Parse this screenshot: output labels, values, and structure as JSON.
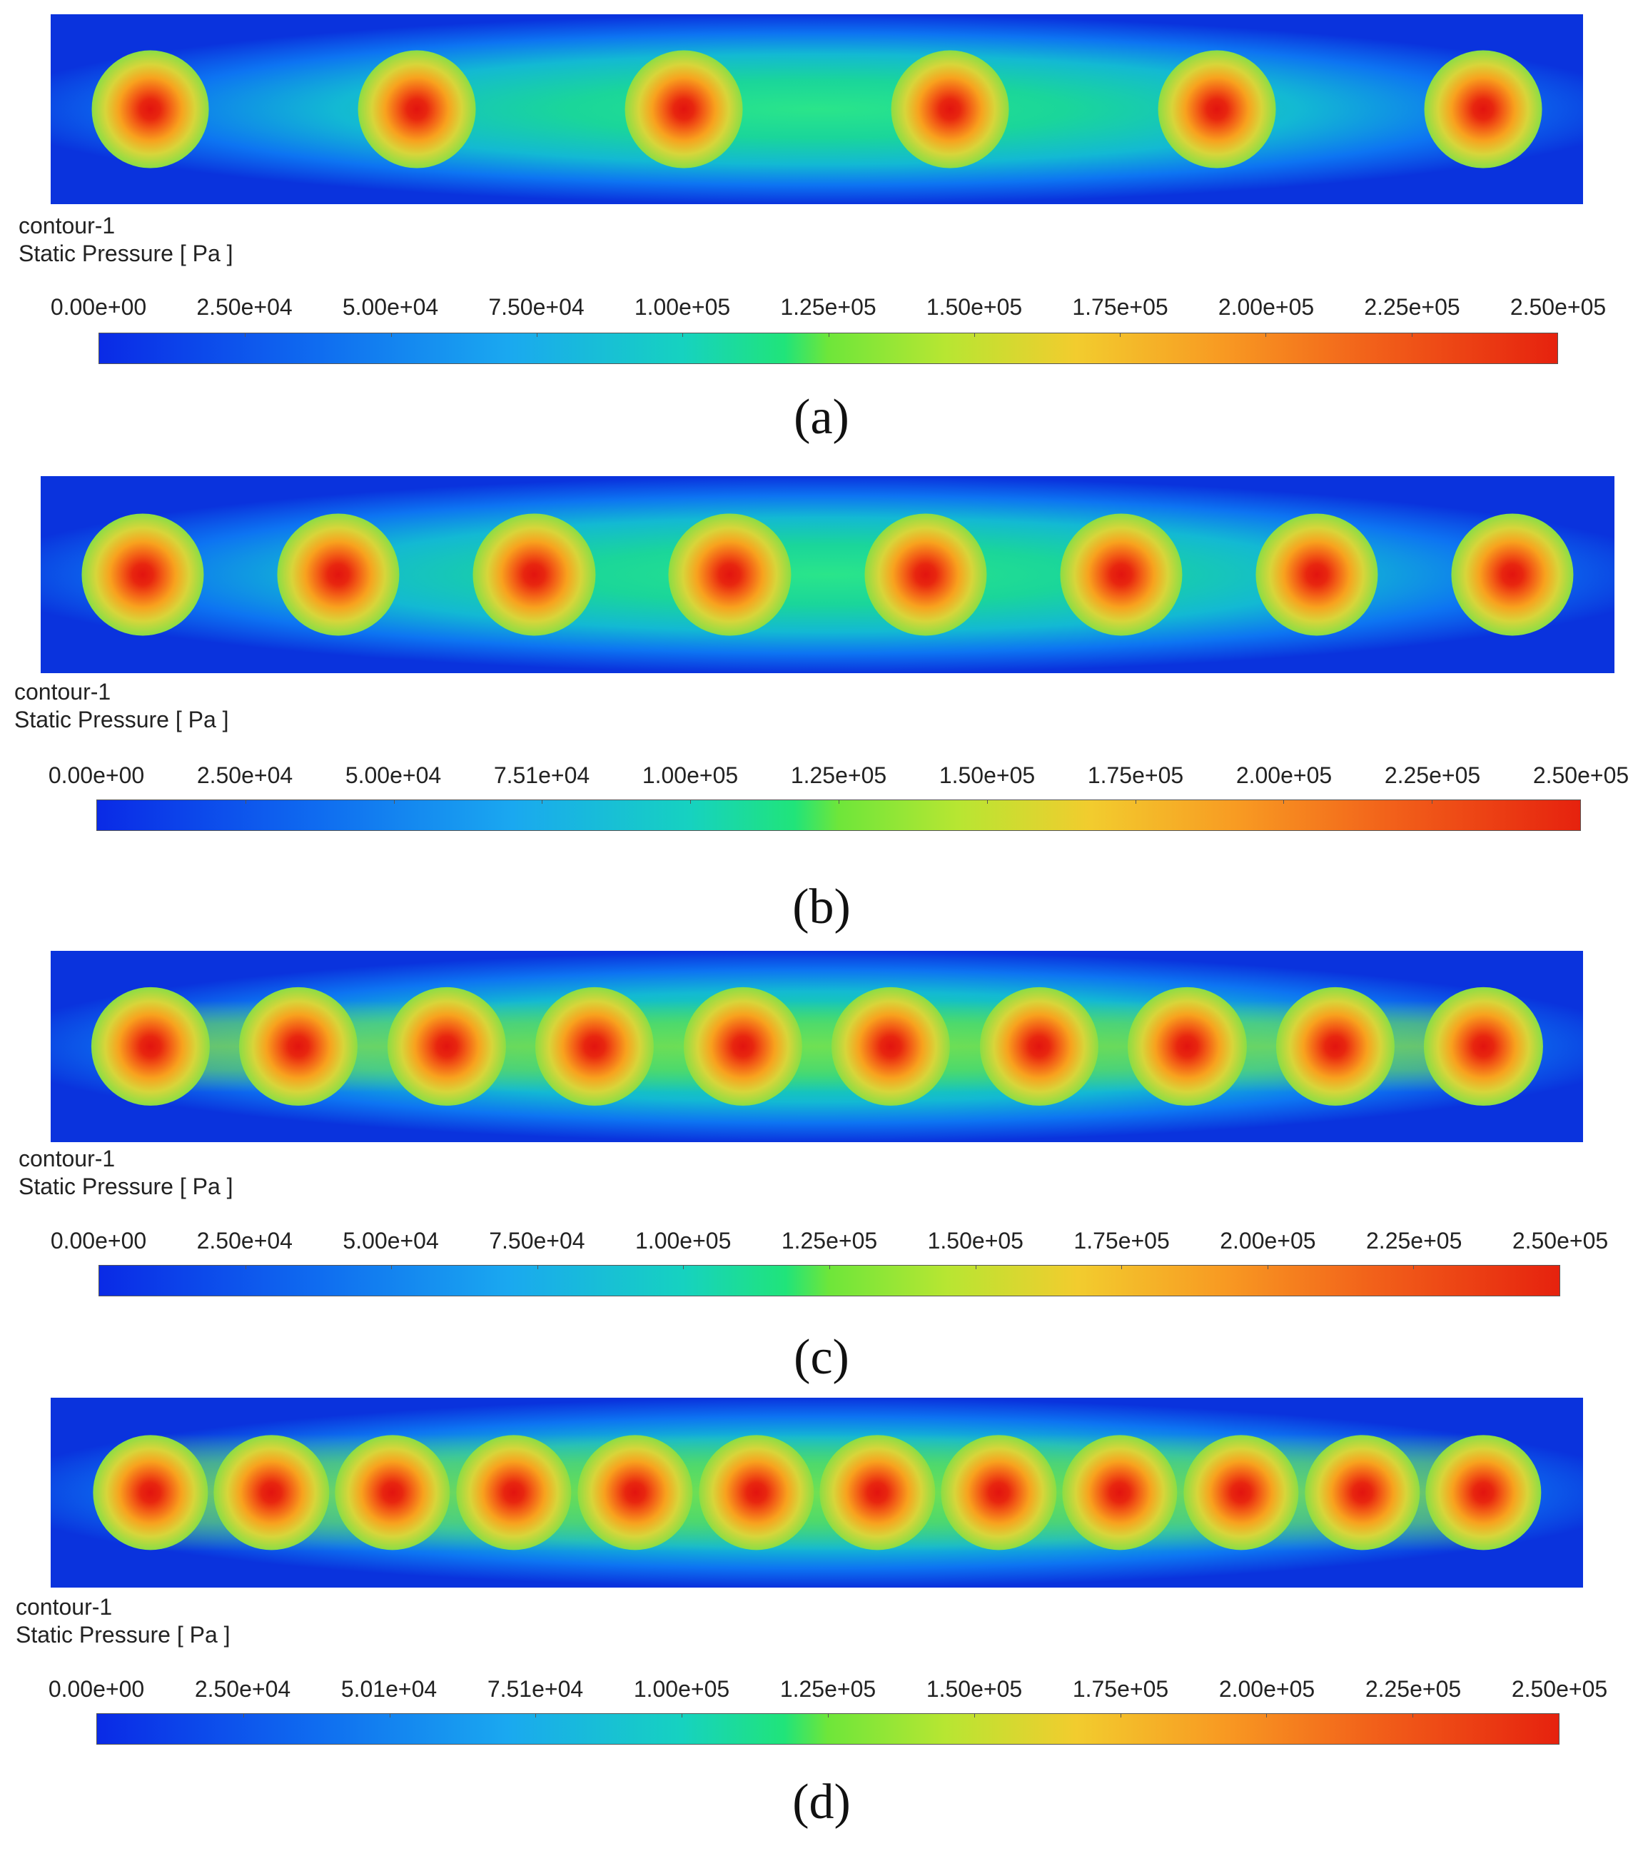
{
  "panels": [
    {
      "label": "(a)",
      "contour_name": "contour-1",
      "variable": "Static Pressure [ Pa ]",
      "tick_labels": [
        "0.00e+00",
        "2.50e+04",
        "5.00e+04",
        "7.50e+04",
        "1.00e+05",
        "1.25e+05",
        "1.50e+05",
        "1.75e+05",
        "2.00e+05",
        "2.25e+05",
        "2.50e+05"
      ],
      "peak_count": 6
    },
    {
      "label": "(b)",
      "contour_name": "contour-1",
      "variable": "Static Pressure [ Pa ]",
      "tick_labels": [
        "0.00e+00",
        "2.50e+04",
        "5.00e+04",
        "7.51e+04",
        "1.00e+05",
        "1.25e+05",
        "1.50e+05",
        "1.75e+05",
        "2.00e+05",
        "2.25e+05",
        "2.50e+05"
      ],
      "peak_count": 8
    },
    {
      "label": "(c)",
      "contour_name": "contour-1",
      "variable": "Static Pressure [ Pa ]",
      "tick_labels": [
        "0.00e+00",
        "2.50e+04",
        "5.00e+04",
        "7.50e+04",
        "1.00e+05",
        "1.25e+05",
        "1.50e+05",
        "1.75e+05",
        "2.00e+05",
        "2.25e+05",
        "2.50e+05"
      ],
      "peak_count": 10
    },
    {
      "label": "(d)",
      "contour_name": "contour-1",
      "variable": "Static Pressure [ Pa ]",
      "tick_labels": [
        "0.00e+00",
        "2.50e+04",
        "5.01e+04",
        "7.51e+04",
        "1.00e+05",
        "1.25e+05",
        "1.50e+05",
        "1.75e+05",
        "2.00e+05",
        "2.25e+05",
        "2.50e+05"
      ],
      "peak_count": 12
    }
  ],
  "colors": {
    "low": "#0a2ae6",
    "mid": "#20e47a",
    "high": "#e6220e"
  }
}
